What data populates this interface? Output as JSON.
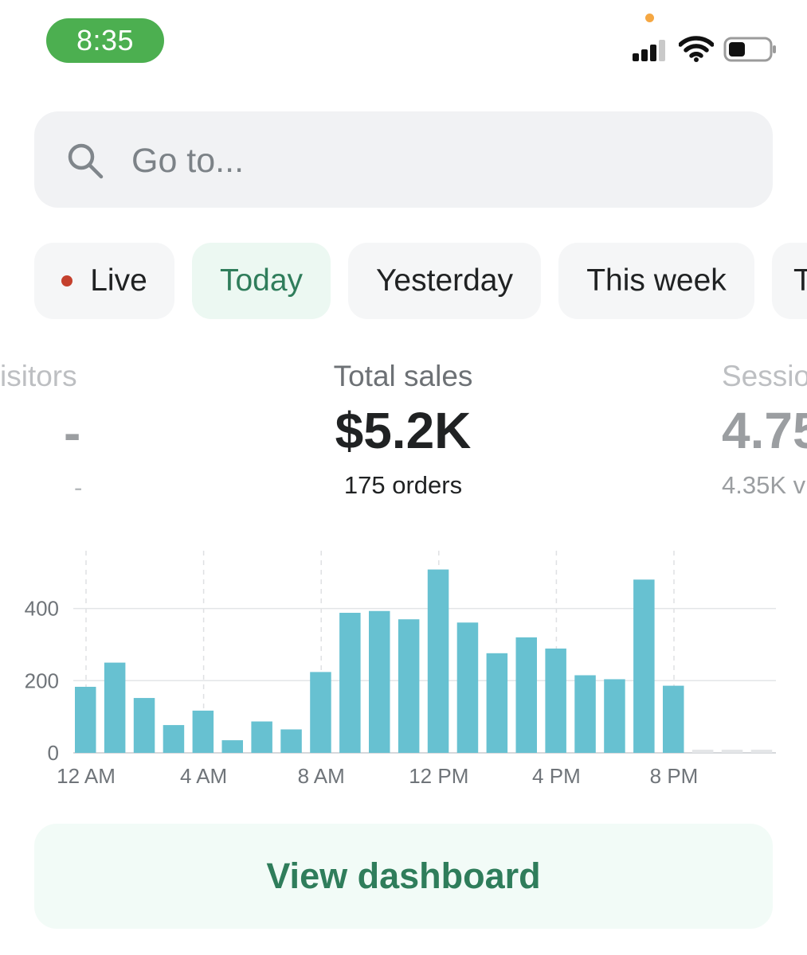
{
  "status_bar": {
    "time": "8:35"
  },
  "search": {
    "placeholder": "Go to..."
  },
  "filters": [
    {
      "label": "Live",
      "selected": false
    },
    {
      "label": "Today",
      "selected": true
    },
    {
      "label": "Yesterday",
      "selected": false
    },
    {
      "label": "This week",
      "selected": false
    },
    {
      "label": "T",
      "selected": false
    }
  ],
  "metrics": {
    "visitors": {
      "label": "isitors",
      "value": "-",
      "sub": "-"
    },
    "total_sales": {
      "label": "Total sales",
      "value": "$5.2K",
      "sub": "175 orders"
    },
    "sessions": {
      "label": "Sessio",
      "value": "4.75",
      "sub": "4.35K v"
    }
  },
  "chart_data": {
    "type": "bar",
    "x": [
      0,
      1,
      2,
      3,
      4,
      5,
      6,
      7,
      8,
      9,
      10,
      11,
      12,
      13,
      14,
      15,
      16,
      17,
      18,
      19,
      20,
      21,
      22,
      23
    ],
    "values": [
      183,
      250,
      152,
      77,
      117,
      35,
      87,
      65,
      224,
      388,
      393,
      370,
      508,
      361,
      276,
      320,
      289,
      215,
      204,
      480,
      186,
      null,
      null,
      null
    ],
    "x_tick_labels": [
      "12 AM",
      "4 AM",
      "8 AM",
      "12 PM",
      "4 PM",
      "8 PM"
    ],
    "y_tick_labels": [
      "0",
      "200",
      "400"
    ],
    "ylim": [
      0,
      560
    ],
    "bar_color": "#67c1d1",
    "grid": true
  },
  "cta": {
    "label": "View dashboard"
  }
}
